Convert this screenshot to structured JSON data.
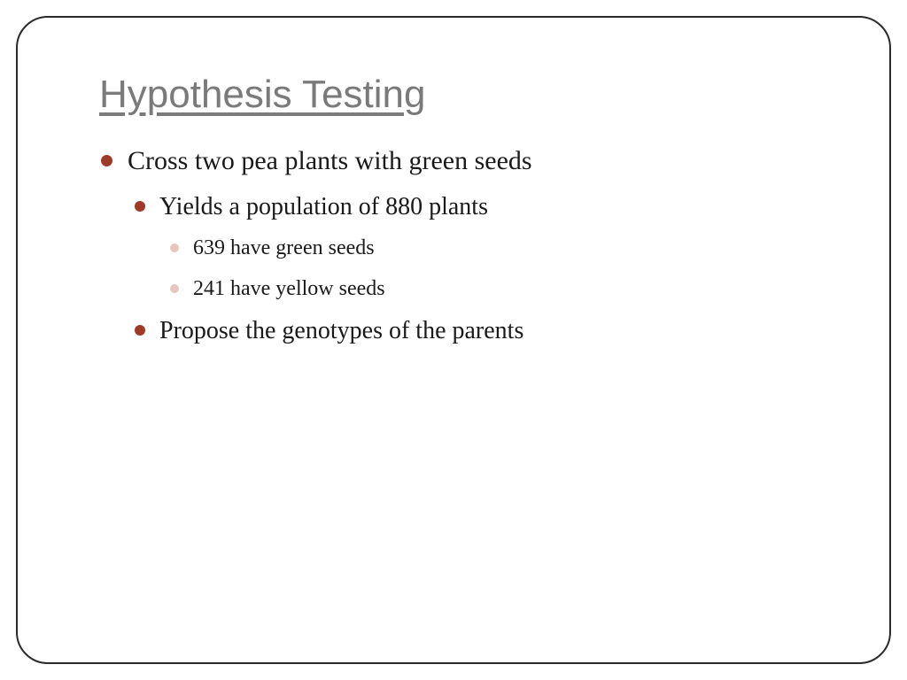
{
  "slide": {
    "title": "Hypothesis Testing",
    "title_color": "#7a7a7a",
    "title_fontsize": 44,
    "border_color": "#2a2a2a",
    "border_radius": 36,
    "bullets": {
      "l1_1": "Cross two pea plants with green seeds",
      "l2_1": "Yields a population of 880 plants",
      "l3_1": "639 have green seeds",
      "l3_2": "241 have yellow seeds",
      "l2_2": "Propose the genotypes of the parents"
    },
    "bullet_colors": {
      "level1": "#a03a28",
      "level2": "#a03a28",
      "level3": "#e7c6bf"
    },
    "body_fontsizes": {
      "level1": 30,
      "level2": 28,
      "level3": 24
    },
    "text_color": "#1a1a1a",
    "background_color": "#ffffff"
  }
}
